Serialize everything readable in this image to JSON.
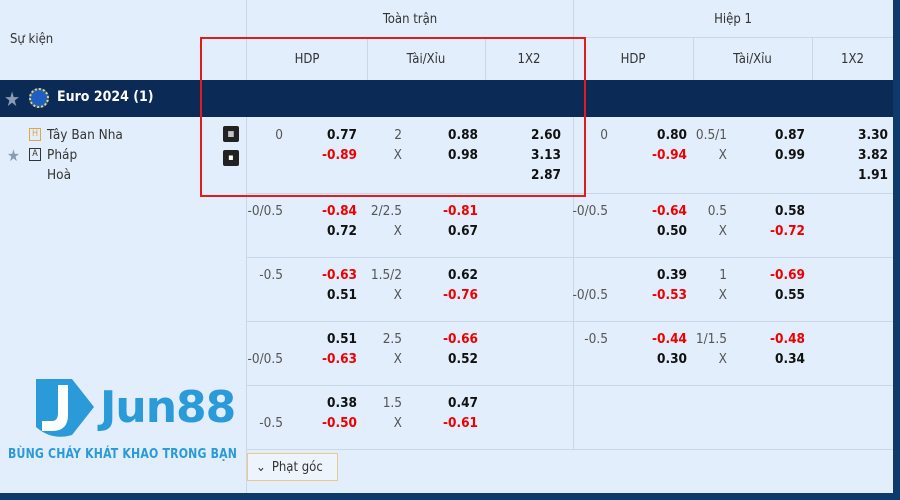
{
  "header": {
    "event_label": "Sự kiện",
    "full_time": "Toàn trận",
    "first_half": "Hiệp 1",
    "cols": [
      "HDP",
      "Tài/Xỉu",
      "1X2"
    ]
  },
  "league": {
    "name": "Euro 2024 (1)"
  },
  "match": {
    "home_badge": "H",
    "away_badge": "A",
    "home": "Tây Ban Nha",
    "away": "Pháp",
    "draw": "Hoà"
  },
  "rows": [
    {
      "ft": {
        "hdp": "0",
        "hdp_pos": 1,
        "h1": "0.77",
        "h2": "-0.89",
        "ou": "2",
        "o1": "0.88",
        "o2": "0.98",
        "x": [
          "2.60",
          "3.13",
          "2.87"
        ]
      },
      "h1": {
        "hdp": "0",
        "hdp_pos": 1,
        "h1": "0.80",
        "h2": "-0.94",
        "ou": "0.5/1",
        "o1": "0.87",
        "o2": "0.99",
        "x": [
          "3.30",
          "3.82",
          "1.91"
        ]
      }
    },
    {
      "ft": {
        "hdp": "-0/0.5",
        "hdp_pos": 1,
        "h1": "-0.84",
        "h2": "0.72",
        "ou": "2/2.5",
        "o1": "-0.81",
        "o2": "0.67"
      },
      "h1": {
        "hdp": "-0/0.5",
        "hdp_pos": 1,
        "h1": "-0.64",
        "h2": "0.50",
        "ou": "0.5",
        "o1": "0.58",
        "o2": "-0.72"
      }
    },
    {
      "ft": {
        "hdp": "-0.5",
        "hdp_pos": 1,
        "h1": "-0.63",
        "h2": "0.51",
        "ou": "1.5/2",
        "o1": "0.62",
        "o2": "-0.76"
      },
      "h1": {
        "hdp": "-0/0.5",
        "hdp_pos": 2,
        "h1": "0.39",
        "h2": "-0.53",
        "ou": "1",
        "o1": "-0.69",
        "o2": "0.55"
      }
    },
    {
      "ft": {
        "hdp": "-0/0.5",
        "hdp_pos": 2,
        "h1": "0.51",
        "h2": "-0.63",
        "ou": "2.5",
        "o1": "-0.66",
        "o2": "0.52"
      },
      "h1": {
        "hdp": "-0.5",
        "hdp_pos": 1,
        "h1": "-0.44",
        "h2": "0.30",
        "ou": "1/1.5",
        "o1": "-0.48",
        "o2": "0.34"
      }
    },
    {
      "ft": {
        "hdp": "-0.5",
        "hdp_pos": 2,
        "h1": "0.38",
        "h2": "-0.50",
        "ou": "1.5",
        "o1": "0.47",
        "o2": "-0.61"
      }
    }
  ],
  "under_label": "X",
  "corner_button": "Phạt góc",
  "logo": {
    "brand": "Jun88",
    "tagline": "BÙNG CHÁY KHÁT KHAO TRONG BẠN"
  },
  "colors": {
    "league_bar": "#0b2a55",
    "negative": "#e00000",
    "highlight": "#e21b1b",
    "logo": "#2a9ad8"
  }
}
